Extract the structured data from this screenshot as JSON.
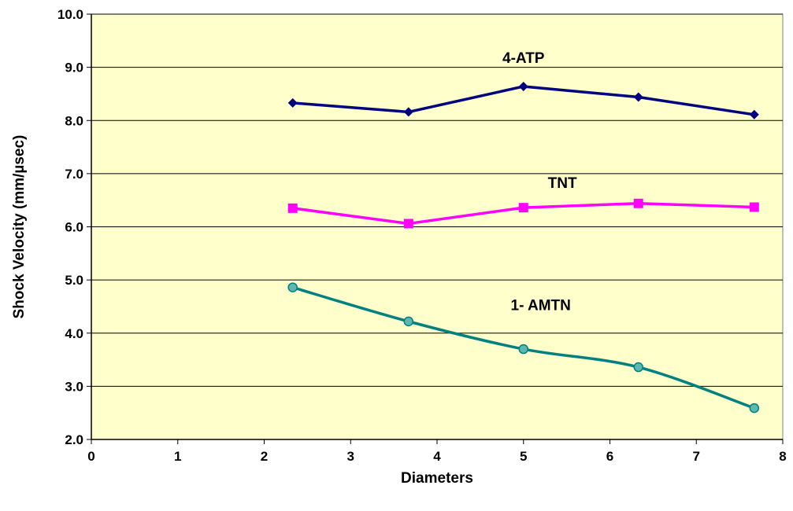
{
  "chart_data": {
    "type": "line",
    "xlabel": "Diameters",
    "ylabel": "Shock Velocity (mm/µsec)",
    "xlim": [
      0,
      8
    ],
    "ylim": [
      2.0,
      10.0
    ],
    "x_ticks": [
      "0",
      "1",
      "2",
      "3",
      "4",
      "5",
      "6",
      "7",
      "8"
    ],
    "y_ticks": [
      "2.0",
      "3.0",
      "4.0",
      "5.0",
      "6.0",
      "7.0",
      "8.0",
      "9.0",
      "10.0"
    ],
    "grid": "horizontal",
    "plot_background": "#FFFFCC",
    "series": [
      {
        "name": "4-ATP",
        "color": "#000080",
        "marker": "diamond",
        "smooth": false,
        "x": [
          2.33,
          3.67,
          5.0,
          6.33,
          7.67
        ],
        "y": [
          8.33,
          8.16,
          8.64,
          8.44,
          8.11
        ],
        "label_anchor": [
          5.0,
          9.08
        ]
      },
      {
        "name": "TNT",
        "color": "#FF00FF",
        "marker": "square",
        "smooth": false,
        "x": [
          2.33,
          3.67,
          5.0,
          6.33,
          7.67
        ],
        "y": [
          6.35,
          6.06,
          6.36,
          6.44,
          6.37
        ],
        "label_anchor": [
          5.45,
          6.73
        ]
      },
      {
        "name": "1- AMTN",
        "color": "#008080",
        "marker": "circle",
        "smooth": true,
        "x": [
          2.33,
          3.67,
          5.0,
          6.33,
          7.67
        ],
        "y": [
          4.86,
          4.22,
          3.7,
          3.36,
          2.59
        ],
        "label_anchor": [
          5.2,
          4.43
        ]
      }
    ]
  }
}
